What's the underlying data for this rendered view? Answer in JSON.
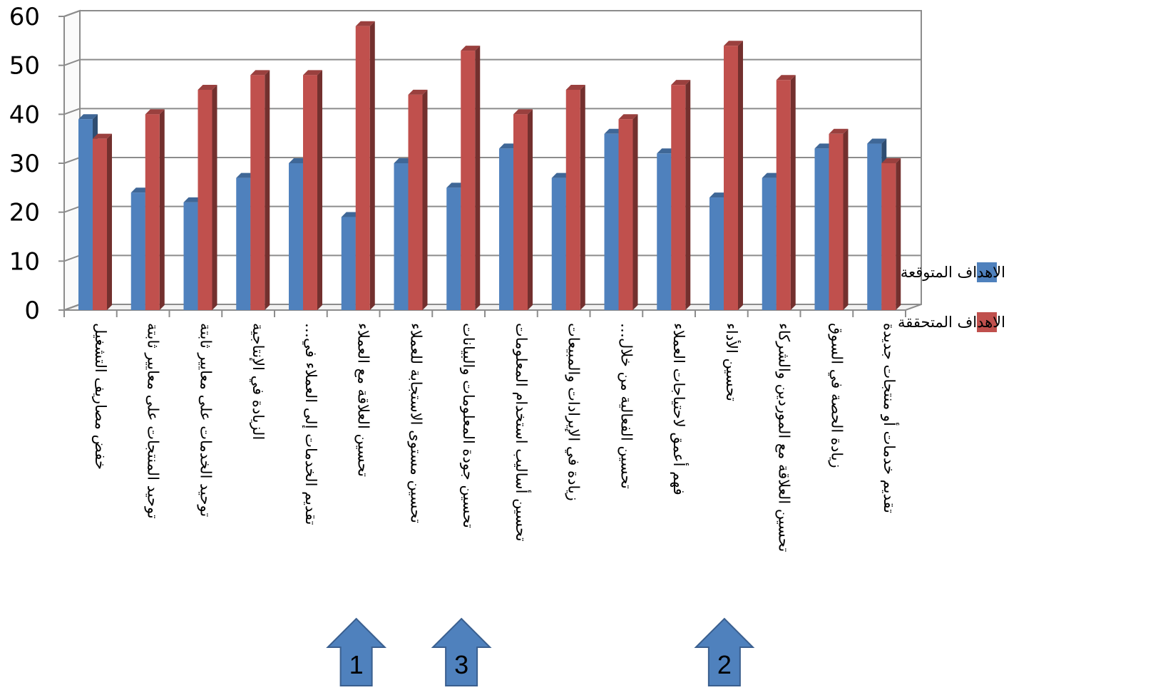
{
  "chart_data": {
    "type": "bar",
    "title": "",
    "xlabel": "",
    "ylabel": "",
    "ylim": [
      0,
      60
    ],
    "yticks": [
      "0",
      "10",
      "20",
      "30",
      "40",
      "50",
      "60"
    ],
    "grid": true,
    "legend_position": "right",
    "categories": [
      "خفض مصاريف التشغيل",
      "توحيد المنتجات على معايير ثابتة",
      "توحيد الخدمات على معايير ثابتة",
      "الزيادة في الإنتاجية",
      "تقديم الخدمات إلى العملاء في…",
      "تحسين العلاقة مع العملاء",
      "تحسين مستوى الاستجابة للعملاء",
      "تحسين جودة المعلومات والبيانات",
      "تحسين أساليب استخدام المعلومات",
      "زيادة في الإيرادات والمبيعات",
      "تحسين الفعالية من خلال…",
      "فهم أعمق لاحتياجات العملاء",
      "تحسين الأداء",
      "تحسين العلاقة مع الموردين والشركاء",
      "زيادة الحصة في السوق",
      "تقديم خدمات أو منتجات جديدة"
    ],
    "series": [
      {
        "name": "الاهداف المتوقعة",
        "color": "#4F81BD",
        "values": [
          39,
          24,
          22,
          27,
          30,
          19,
          30,
          25,
          33,
          27,
          36,
          32,
          23,
          27,
          33,
          34
        ]
      },
      {
        "name": "الاهداف المتحققة",
        "color": "#C0504D",
        "values": [
          35,
          40,
          45,
          48,
          48,
          58,
          44,
          53,
          40,
          45,
          39,
          46,
          54,
          47,
          36,
          30
        ]
      }
    ],
    "annotations": [
      {
        "label": "1",
        "category_index": 5,
        "color": "#4F81BD"
      },
      {
        "label": "3",
        "category_index": 7,
        "color": "#4F81BD"
      },
      {
        "label": "2",
        "category_index": 12,
        "color": "#4F81BD"
      }
    ]
  }
}
